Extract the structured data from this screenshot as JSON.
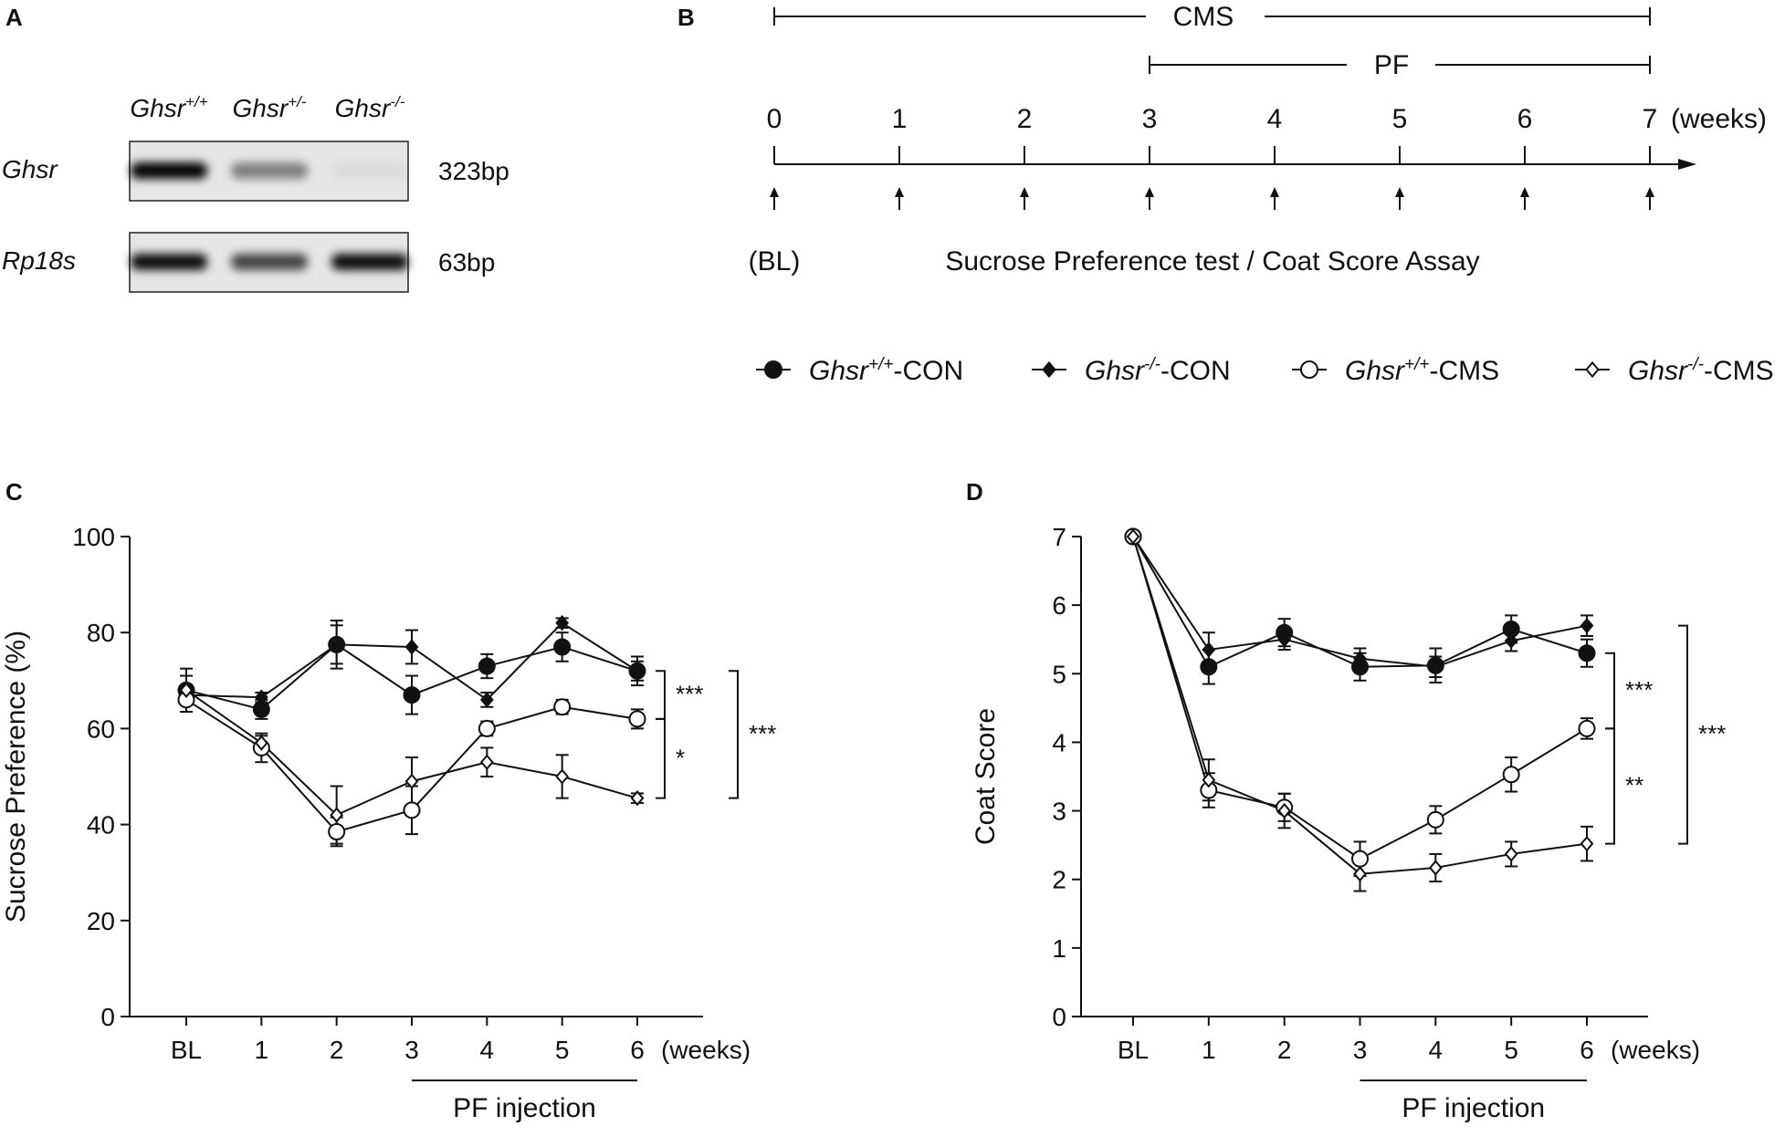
{
  "panels": {
    "A": "A",
    "B": "B",
    "C": "C",
    "D": "D"
  },
  "gel": {
    "columns": [
      {
        "base": "Ghsr",
        "sup": "+/+"
      },
      {
        "base": "Ghsr",
        "sup": "+/-"
      },
      {
        "base": "Ghsr",
        "sup": "-/-"
      }
    ],
    "rows": [
      {
        "gene": "Ghsr",
        "size": "323bp",
        "intensity": [
          1.0,
          0.45,
          0.05
        ]
      },
      {
        "gene": "Rp18s",
        "size": "63bp",
        "intensity": [
          0.95,
          0.7,
          0.95
        ]
      }
    ]
  },
  "timeline": {
    "cms_label": "CMS",
    "pf_label": "PF",
    "weeks": [
      "0",
      "1",
      "2",
      "3",
      "4",
      "5",
      "6",
      "7"
    ],
    "unit": "(weeks)",
    "bl_label": "(BL)",
    "test_label": "Sucrose Preference test / Coat Score Assay",
    "cms_range": [
      0,
      7
    ],
    "pf_range": [
      3,
      7
    ]
  },
  "legend": [
    {
      "base": "Ghsr",
      "sup": "+/+",
      "suffix": "-CON",
      "marker": "circle",
      "fill": "#111111"
    },
    {
      "base": "Ghsr",
      "sup": "-/-",
      "suffix": "-CON",
      "marker": "diamond",
      "fill": "#111111"
    },
    {
      "base": "Ghsr",
      "sup": "+/+",
      "suffix": "-CMS",
      "marker": "circle",
      "fill": "#ffffff"
    },
    {
      "base": "Ghsr",
      "sup": "-/-",
      "suffix": "-CMS",
      "marker": "diamond",
      "fill": "#ffffff"
    }
  ],
  "chart_data": [
    {
      "type": "line",
      "panel": "C",
      "categories": [
        "BL",
        "1",
        "2",
        "3",
        "4",
        "5",
        "6"
      ],
      "x_unit": "(weeks)",
      "ylabel": "Sucrose Preference (%)",
      "ylim": [
        0,
        100
      ],
      "yticks": [
        "0",
        "20",
        "40",
        "60",
        "80",
        "100"
      ],
      "pf_label": "PF injection",
      "pf_range": [
        3,
        6
      ],
      "series": [
        {
          "name": "Ghsr+/+-CON",
          "values": [
            68,
            64,
            77.5,
            67,
            73,
            77,
            72
          ],
          "err": [
            3,
            2,
            5,
            4,
            2.5,
            3,
            3
          ]
        },
        {
          "name": "Ghsr-/--CON",
          "values": [
            67,
            66.5,
            77.5,
            77,
            66,
            82,
            72
          ],
          "err": [
            2,
            1,
            4,
            3.5,
            1.5,
            1,
            2
          ]
        },
        {
          "name": "Ghsr+/+-CMS",
          "values": [
            66,
            56,
            38.5,
            43,
            60,
            64.5,
            62
          ],
          "err": [
            2.5,
            3,
            3,
            5,
            1.5,
            1.5,
            2
          ]
        },
        {
          "name": "Ghsr-/--CMS",
          "values": [
            68,
            57,
            42,
            49,
            53,
            50,
            45.5
          ],
          "err": [
            4.5,
            1.5,
            6,
            5,
            3,
            4.5,
            1
          ]
        }
      ],
      "significance": [
        {
          "from": 72,
          "to": 62,
          "label": "***"
        },
        {
          "from": 62,
          "to": 45.5,
          "label": "*"
        },
        {
          "from": 72,
          "to": 45.5,
          "label": "***"
        }
      ]
    },
    {
      "type": "line",
      "panel": "D",
      "categories": [
        "BL",
        "1",
        "2",
        "3",
        "4",
        "5",
        "6"
      ],
      "x_unit": "(weeks)",
      "ylabel": "Coat Score",
      "ylim": [
        0,
        7
      ],
      "yticks": [
        "0",
        "1",
        "2",
        "3",
        "4",
        "5",
        "6",
        "7"
      ],
      "pf_label": "PF injection",
      "pf_range": [
        3,
        6
      ],
      "series": [
        {
          "name": "Ghsr+/+-CON",
          "values": [
            7,
            5.1,
            5.6,
            5.1,
            5.12,
            5.65,
            5.3
          ],
          "err": [
            0.05,
            0.25,
            0.2,
            0.2,
            0.25,
            0.2,
            0.2
          ]
        },
        {
          "name": "Ghsr-/--CON",
          "values": [
            7,
            5.35,
            5.5,
            5.22,
            5.1,
            5.48,
            5.7
          ],
          "err": [
            0.05,
            0.25,
            0.15,
            0.15,
            0.15,
            0.15,
            0.15
          ]
        },
        {
          "name": "Ghsr+/+-CMS",
          "values": [
            7,
            3.3,
            3.05,
            2.3,
            2.87,
            3.53,
            4.2
          ],
          "err": [
            0.05,
            0.25,
            0.2,
            0.25,
            0.2,
            0.25,
            0.15
          ]
        },
        {
          "name": "Ghsr-/--CMS",
          "values": [
            7,
            3.45,
            3.0,
            2.08,
            2.17,
            2.37,
            2.52
          ],
          "err": [
            0.05,
            0.3,
            0.25,
            0.25,
            0.2,
            0.18,
            0.25
          ]
        }
      ],
      "significance": [
        {
          "from": 5.3,
          "to": 4.2,
          "label": "***"
        },
        {
          "from": 4.2,
          "to": 2.52,
          "label": "**"
        },
        {
          "from": 5.7,
          "to": 2.52,
          "label": "***"
        }
      ]
    }
  ]
}
